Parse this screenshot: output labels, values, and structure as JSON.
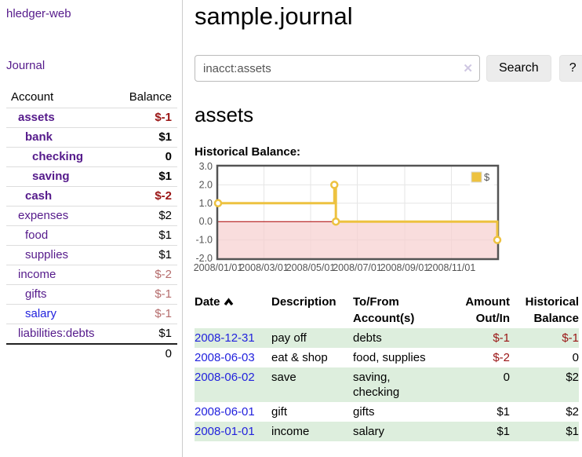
{
  "app": {
    "title": "hledger-web"
  },
  "colors": {
    "accent_purple": "#551a8b",
    "link_blue": "#2222dd",
    "negative_strong": "#9a1414",
    "negative_soft": "#b56c6c",
    "row_stripe_green": "#ddeedd",
    "button_bg": "#ececec"
  },
  "sidebar": {
    "journal_link": "Journal",
    "accounts_table": {
      "headers": {
        "account": "Account",
        "balance": "Balance"
      },
      "rows": [
        {
          "name": "assets",
          "value": "$-1",
          "level": 1,
          "bold": true,
          "vclass": "neg-strong"
        },
        {
          "name": "bank",
          "value": "$1",
          "level": 2,
          "bold": true,
          "vclass": null
        },
        {
          "name": "checking",
          "value": "0",
          "level": 3,
          "bold": true,
          "vclass": null
        },
        {
          "name": "saving",
          "value": "$1",
          "level": 3,
          "bold": true,
          "vclass": null
        },
        {
          "name": "cash",
          "value": "$-2",
          "level": 2,
          "bold": true,
          "vclass": "neg-strong"
        },
        {
          "name": "expenses",
          "value": "$2",
          "level": 1,
          "bold": false,
          "vclass": null
        },
        {
          "name": "food",
          "value": "$1",
          "level": 2,
          "bold": false,
          "vclass": null
        },
        {
          "name": "supplies",
          "value": "$1",
          "level": 2,
          "bold": false,
          "vclass": null
        },
        {
          "name": "income",
          "value": "$-2",
          "level": 1,
          "bold": false,
          "vclass": "neg-soft"
        },
        {
          "name": "gifts",
          "value": "$-1",
          "level": 2,
          "bold": false,
          "vclass": "neg-soft"
        },
        {
          "name": "salary",
          "value": "$-1",
          "level": 2,
          "bold": false,
          "vclass": "neg-soft",
          "link_color": "blue"
        },
        {
          "name": "liabilities:debts",
          "value": "$1",
          "level": 1,
          "bold": false,
          "vclass": null
        }
      ],
      "total": "0"
    }
  },
  "main": {
    "title": "sample.journal",
    "search": {
      "value": "inacct:assets",
      "clear_icon": "✕",
      "button": "Search",
      "help_button": "?"
    },
    "account_heading": "assets",
    "chart_label": "Historical Balance:",
    "register_table": {
      "headers": {
        "date": "Date",
        "description": "Description",
        "accounts": "To/From Account(s)",
        "amount": "Amount Out/In",
        "balance": "Historical Balance"
      },
      "rows": [
        {
          "date": "2008-12-31",
          "description": "pay off",
          "accounts": "debts",
          "amount": "$-1",
          "balance": "$-1"
        },
        {
          "date": "2008-06-03",
          "description": "eat & shop",
          "accounts": "food, supplies",
          "amount": "$-2",
          "balance": "0"
        },
        {
          "date": "2008-06-02",
          "description": "save",
          "accounts": "saving, checking",
          "amount": "0",
          "balance": "$2"
        },
        {
          "date": "2008-06-01",
          "description": "gift",
          "accounts": "gifts",
          "amount": "$1",
          "balance": "$2"
        },
        {
          "date": "2008-01-01",
          "description": "income",
          "accounts": "salary",
          "amount": "$1",
          "balance": "$1"
        }
      ]
    }
  },
  "chart_data": {
    "type": "line",
    "step": true,
    "title": "Historical Balance:",
    "series": [
      {
        "name": "$",
        "color": "#edc240",
        "points": [
          [
            "2008-01-01",
            1
          ],
          [
            "2008-06-01",
            2
          ],
          [
            "2008-06-03",
            0
          ],
          [
            "2008-12-31",
            -1
          ]
        ]
      }
    ],
    "x_range": [
      "2008-01-01",
      "2008-12-31"
    ],
    "x_ticks": [
      {
        "date": "2008-01-01",
        "label": "2008/01/01"
      },
      {
        "date": "2008-03-01",
        "label": "2008/03/01"
      },
      {
        "date": "2008-05-01",
        "label": "2008/05/01"
      },
      {
        "date": "2008-07-01",
        "label": "2008/07/01"
      },
      {
        "date": "2008-09-01",
        "label": "2008/09/01"
      },
      {
        "date": "2008-11-01",
        "label": "2008/11/01"
      }
    ],
    "ylim": [
      -2,
      3
    ],
    "y_ticks": [
      3.0,
      2.0,
      1.0,
      0.0,
      -1.0,
      -2.0
    ],
    "y_tick_labels": [
      "3.0",
      "2.0",
      "1.0",
      "0.0",
      "-1.0",
      "-2.0"
    ],
    "grid": true,
    "grid_color": "#e6e6e6",
    "border_color": "#545454",
    "tick_label_color": "#545454",
    "negative_region_color": "#f6cfcf",
    "zero_line_color": "#aa0000",
    "legend_position": "top-right"
  }
}
